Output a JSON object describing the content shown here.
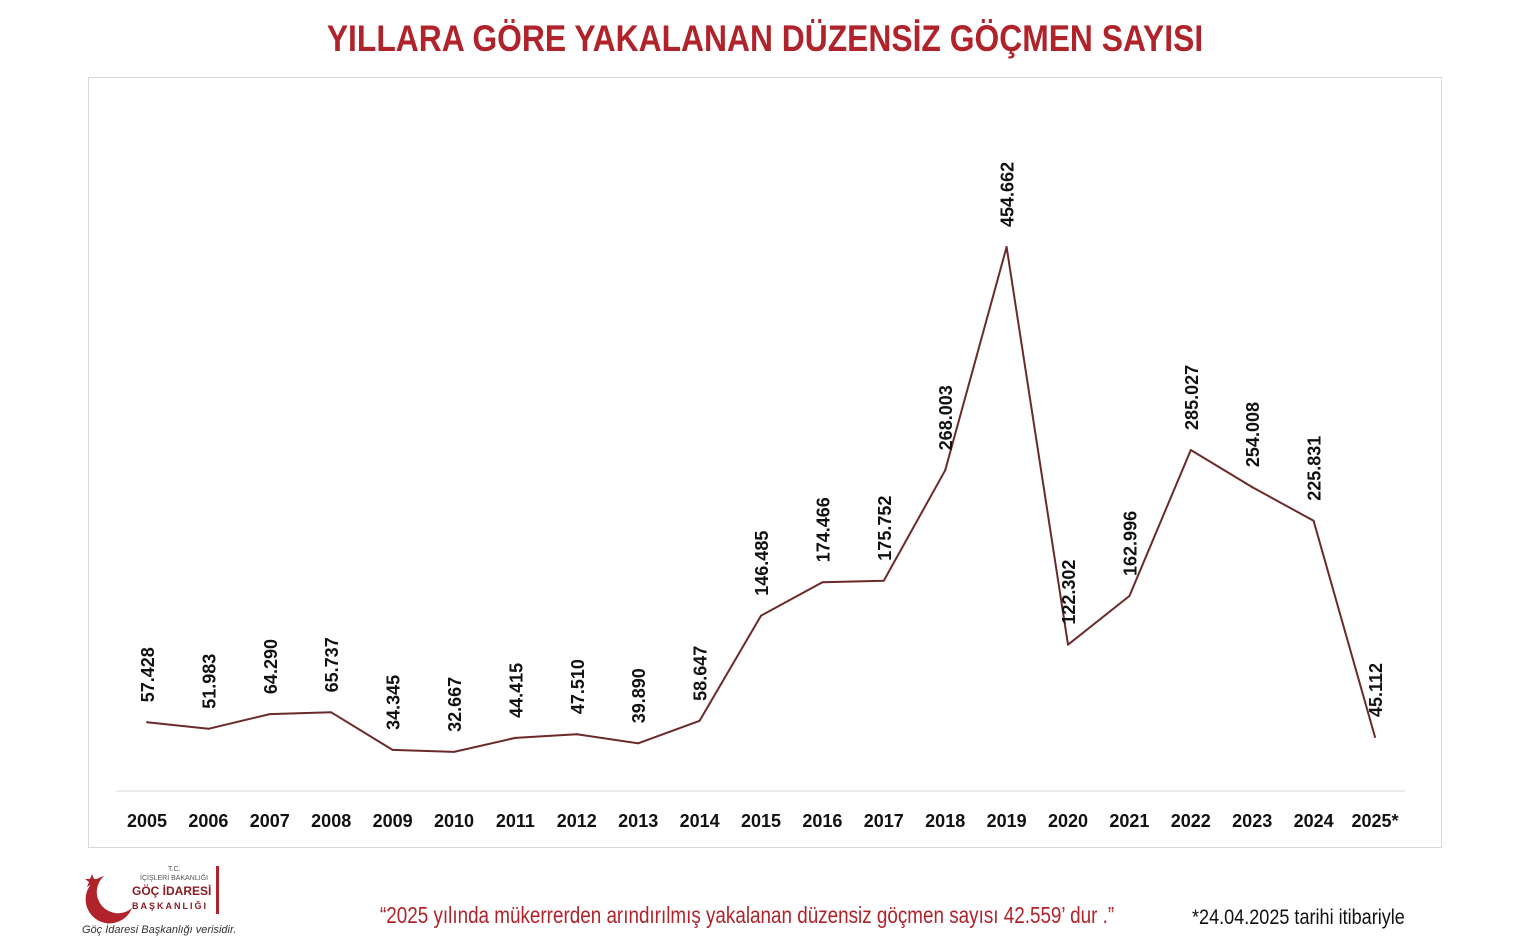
{
  "chart_data": {
    "type": "line",
    "title": "YILLARA GÖRE YAKALANAN DÜZENSİZ GÖÇMEN SAYISI",
    "categories": [
      "2005",
      "2006",
      "2007",
      "2008",
      "2009",
      "2010",
      "2011",
      "2012",
      "2013",
      "2014",
      "2015",
      "2016",
      "2017",
      "2018",
      "2019",
      "2020",
      "2021",
      "2022",
      "2023",
      "2024",
      "2025*"
    ],
    "values": [
      57428,
      51983,
      64290,
      65737,
      34345,
      32667,
      44415,
      47510,
      39890,
      58647,
      146485,
      174466,
      175752,
      268003,
      454662,
      122302,
      162996,
      285027,
      254008,
      225831,
      45112
    ],
    "data_labels": [
      "57.428",
      "51.983",
      "64.290",
      "65.737",
      "34.345",
      "32.667",
      "44.415",
      "47.510",
      "39.890",
      "58.647",
      "146.485",
      "174.466",
      "175.752",
      "268.003",
      "454.662",
      "122.302",
      "162.996",
      "285.027",
      "254.008",
      "225.831",
      "45.112"
    ],
    "ylim": [
      0,
      580000
    ],
    "grid": false,
    "line_color": "#6b2a2a"
  },
  "footer": {
    "quote": "“2025 yılında mükerrerden arındırılmış yakalanan düzensiz göçmen sayısı  42.559’ dur .”",
    "date_note": "*24.04.2025 tarihi itibariyle"
  },
  "logo": {
    "tc": "T.C.",
    "ministry": "İÇİŞLERİ BAKANLIĞI",
    "name": "GÖÇ İDARESİ",
    "presidency": "BAŞKANLIĞI",
    "caption": "Göç İdaresi Başkanlığı verisidir."
  },
  "colors": {
    "title": "#b0232a",
    "line": "#6b2a2a",
    "accent": "#b0232a"
  }
}
